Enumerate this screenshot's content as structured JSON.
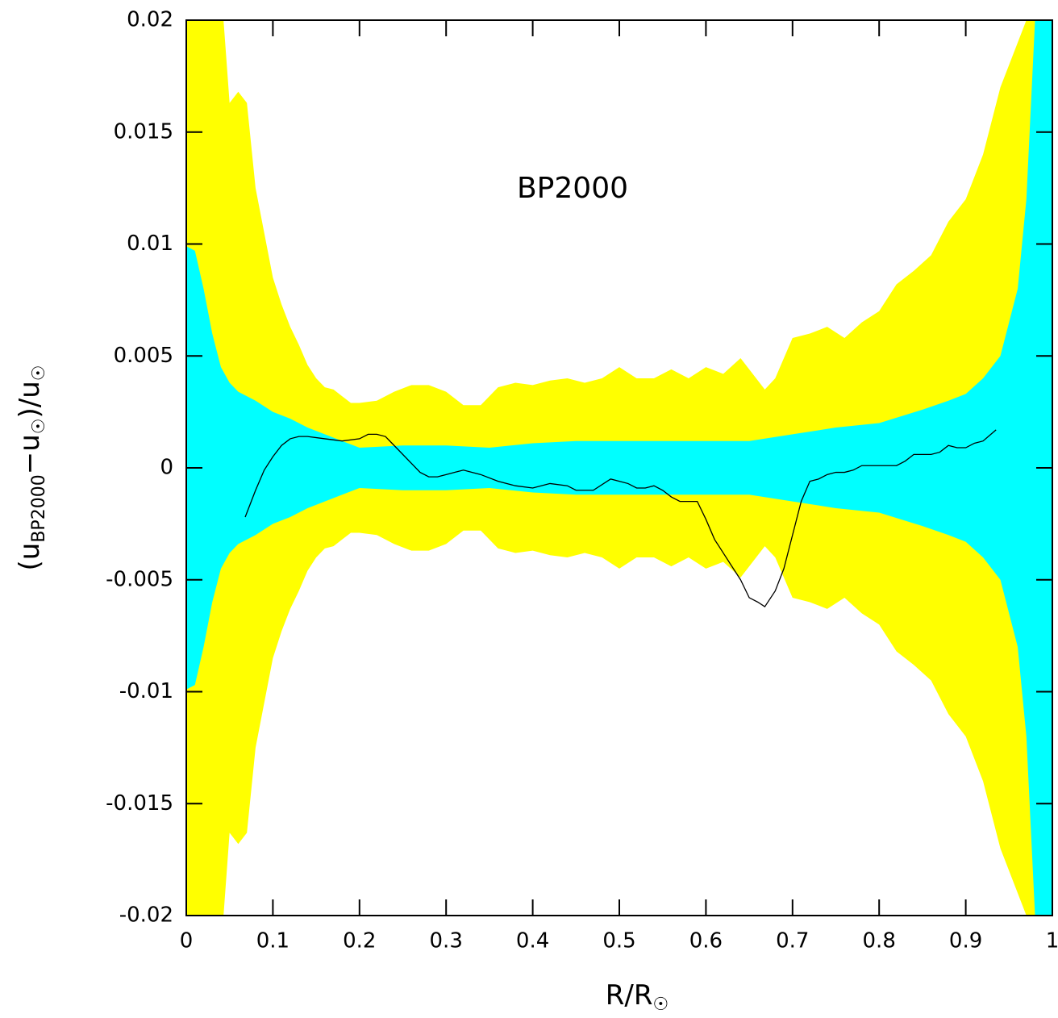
{
  "chart_data": {
    "type": "band",
    "annotation": "BP2000",
    "xlabel": [
      {
        "text": "R/R"
      },
      {
        "text": "☉",
        "sub": true
      }
    ],
    "ylabel": [
      {
        "text": "(u"
      },
      {
        "text": "BP2000",
        "sub": true
      },
      {
        "text": "−u"
      },
      {
        "text": "☉",
        "sub": true
      },
      {
        "text": ")/u"
      },
      {
        "text": "☉",
        "sub": true
      }
    ],
    "xlim": [
      0,
      1
    ],
    "ylim": [
      -0.02,
      0.02
    ],
    "xticks": [
      0,
      0.1,
      0.2,
      0.3,
      0.4,
      0.5,
      0.6,
      0.7,
      0.8,
      0.9,
      1
    ],
    "yticks": [
      -0.02,
      -0.015,
      -0.01,
      -0.005,
      0,
      0.005,
      0.01,
      0.015,
      0.02
    ],
    "series": [
      {
        "type": "band",
        "color": "#ffff00",
        "x": [
          0,
          0.043,
          0.05,
          0.06,
          0.07,
          0.08,
          0.09,
          0.1,
          0.11,
          0.12,
          0.13,
          0.14,
          0.15,
          0.16,
          0.17,
          0.18,
          0.19,
          0.2,
          0.22,
          0.24,
          0.26,
          0.28,
          0.3,
          0.32,
          0.34,
          0.36,
          0.38,
          0.4,
          0.42,
          0.44,
          0.46,
          0.48,
          0.5,
          0.52,
          0.54,
          0.56,
          0.58,
          0.6,
          0.62,
          0.64,
          0.668,
          0.68,
          0.7,
          0.72,
          0.74,
          0.76,
          0.78,
          0.8,
          0.82,
          0.84,
          0.86,
          0.88,
          0.9,
          0.92,
          0.94,
          0.97,
          1
        ],
        "upper": [
          0.025,
          0.02,
          0.0163,
          0.0168,
          0.0163,
          0.0125,
          0.0105,
          0.0085,
          0.0073,
          0.0063,
          0.0055,
          0.0046,
          0.004,
          0.0036,
          0.0035,
          0.0032,
          0.0029,
          0.0029,
          0.003,
          0.0034,
          0.0037,
          0.0037,
          0.0034,
          0.0028,
          0.0028,
          0.0036,
          0.0038,
          0.0037,
          0.0039,
          0.004,
          0.0038,
          0.004,
          0.0045,
          0.004,
          0.004,
          0.0044,
          0.004,
          0.0045,
          0.0042,
          0.0049,
          0.0035,
          0.004,
          0.0058,
          0.006,
          0.0063,
          0.0058,
          0.0065,
          0.007,
          0.0082,
          0.0088,
          0.0095,
          0.011,
          0.012,
          0.014,
          0.017,
          0.02,
          0.025
        ],
        "lower": [
          -0.025,
          -0.02,
          -0.0163,
          -0.0168,
          -0.0163,
          -0.0125,
          -0.0105,
          -0.0085,
          -0.0073,
          -0.0063,
          -0.0055,
          -0.0046,
          -0.004,
          -0.0036,
          -0.0035,
          -0.0032,
          -0.0029,
          -0.0029,
          -0.003,
          -0.0034,
          -0.0037,
          -0.0037,
          -0.0034,
          -0.0028,
          -0.0028,
          -0.0036,
          -0.0038,
          -0.0037,
          -0.0039,
          -0.004,
          -0.0038,
          -0.004,
          -0.0045,
          -0.004,
          -0.004,
          -0.0044,
          -0.004,
          -0.0045,
          -0.0042,
          -0.0049,
          -0.0035,
          -0.004,
          -0.0058,
          -0.006,
          -0.0063,
          -0.0058,
          -0.0065,
          -0.007,
          -0.0082,
          -0.0088,
          -0.0095,
          -0.011,
          -0.012,
          -0.014,
          -0.017,
          -0.02,
          -0.025
        ]
      },
      {
        "type": "band",
        "color": "#00ffff",
        "x": [
          0,
          0.01,
          0.02,
          0.03,
          0.04,
          0.05,
          0.06,
          0.08,
          0.1,
          0.12,
          0.14,
          0.16,
          0.18,
          0.2,
          0.25,
          0.3,
          0.35,
          0.4,
          0.45,
          0.5,
          0.55,
          0.6,
          0.65,
          0.7,
          0.75,
          0.8,
          0.85,
          0.88,
          0.9,
          0.92,
          0.94,
          0.96,
          0.97,
          0.98,
          0.99,
          1
        ],
        "upper": [
          0.0099,
          0.0097,
          0.008,
          0.006,
          0.0045,
          0.0038,
          0.0034,
          0.003,
          0.0025,
          0.0022,
          0.0018,
          0.0015,
          0.0012,
          0.0009,
          0.001,
          0.001,
          0.0009,
          0.0011,
          0.0012,
          0.0012,
          0.0012,
          0.0012,
          0.0012,
          0.0015,
          0.0018,
          0.002,
          0.0026,
          0.003,
          0.0033,
          0.004,
          0.005,
          0.008,
          0.012,
          0.02,
          0.025,
          0.025
        ],
        "lower": [
          -0.0099,
          -0.0097,
          -0.008,
          -0.006,
          -0.0045,
          -0.0038,
          -0.0034,
          -0.003,
          -0.0025,
          -0.0022,
          -0.0018,
          -0.0015,
          -0.0012,
          -0.0009,
          -0.001,
          -0.001,
          -0.0009,
          -0.0011,
          -0.0012,
          -0.0012,
          -0.0012,
          -0.0012,
          -0.0012,
          -0.0015,
          -0.0018,
          -0.002,
          -0.0026,
          -0.003,
          -0.0033,
          -0.004,
          -0.005,
          -0.008,
          -0.012,
          -0.02,
          -0.025,
          -0.025
        ]
      },
      {
        "type": "line",
        "color": "#000000",
        "x": [
          0.068,
          0.08,
          0.09,
          0.1,
          0.11,
          0.12,
          0.13,
          0.14,
          0.16,
          0.18,
          0.2,
          0.21,
          0.22,
          0.23,
          0.24,
          0.26,
          0.27,
          0.28,
          0.29,
          0.3,
          0.31,
          0.32,
          0.34,
          0.36,
          0.38,
          0.4,
          0.42,
          0.44,
          0.45,
          0.47,
          0.49,
          0.51,
          0.52,
          0.53,
          0.54,
          0.55,
          0.56,
          0.57,
          0.59,
          0.6,
          0.61,
          0.62,
          0.63,
          0.64,
          0.65,
          0.66,
          0.668,
          0.68,
          0.69,
          0.7,
          0.71,
          0.72,
          0.73,
          0.74,
          0.75,
          0.76,
          0.77,
          0.78,
          0.79,
          0.8,
          0.81,
          0.82,
          0.83,
          0.84,
          0.85,
          0.86,
          0.87,
          0.88,
          0.89,
          0.9,
          0.91,
          0.92,
          0.935
        ],
        "values": [
          -0.0022,
          -0.001,
          -0.0001,
          0.0005,
          0.001,
          0.0013,
          0.0014,
          0.0014,
          0.0013,
          0.0012,
          0.0013,
          0.0015,
          0.0015,
          0.0014,
          0.001,
          0.0002,
          -0.0002,
          -0.0004,
          -0.0004,
          -0.0003,
          -0.0002,
          -0.0001,
          -0.0003,
          -0.0006,
          -0.0008,
          -0.0009,
          -0.0007,
          -0.0008,
          -0.001,
          -0.001,
          -0.0005,
          -0.0007,
          -0.0009,
          -0.0009,
          -0.0008,
          -0.001,
          -0.0013,
          -0.0015,
          -0.0015,
          -0.0023,
          -0.0032,
          -0.0038,
          -0.0044,
          -0.005,
          -0.0058,
          -0.006,
          -0.0062,
          -0.0055,
          -0.0045,
          -0.003,
          -0.0015,
          -0.0006,
          -0.0005,
          -0.0003,
          -0.0002,
          -0.0002,
          -0.0001,
          0.0001,
          0.0001,
          0.0001,
          0.0001,
          0.0001,
          0.0003,
          0.0006,
          0.0006,
          0.0006,
          0.0007,
          0.001,
          0.0009,
          0.0009,
          0.0011,
          0.0012,
          0.0017
        ]
      }
    ]
  }
}
